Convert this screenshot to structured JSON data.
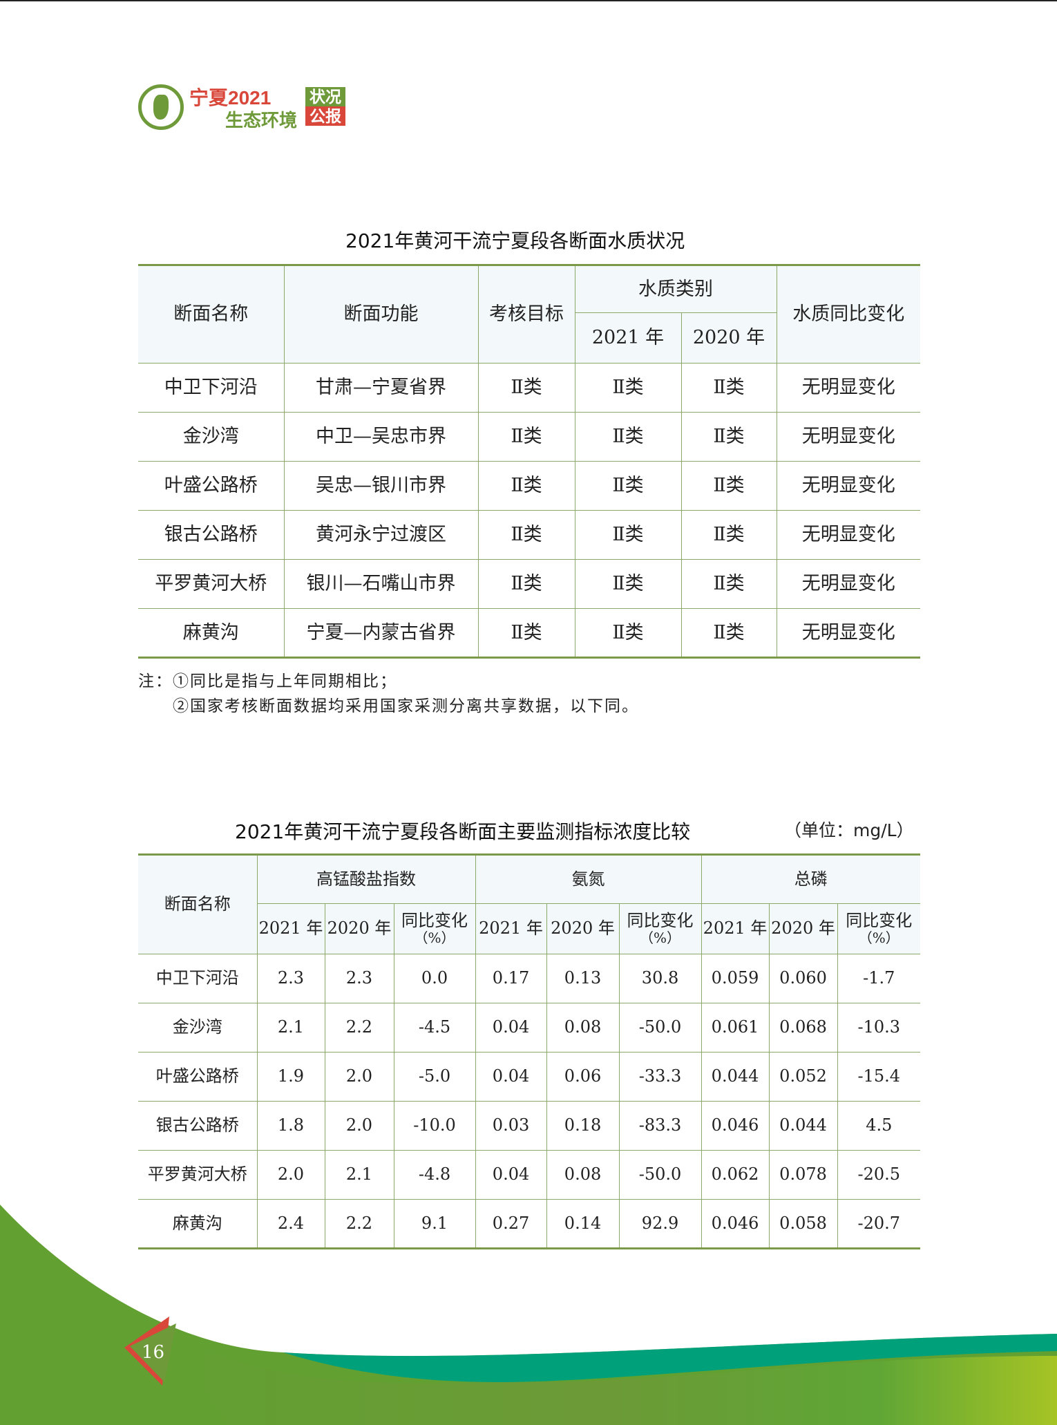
{
  "header": {
    "logo_line1": "宁夏2021",
    "logo_line2": "生态环境",
    "badge1": "状况",
    "badge2": "公报"
  },
  "table1": {
    "title": "2021年黄河干流宁夏段各断面水质状况",
    "headers": {
      "name": "断面名称",
      "function": "断面功能",
      "target": "考核目标",
      "class_group": "水质类别",
      "y2021": "2021 年",
      "y2020": "2020 年",
      "change": "水质同比变化"
    },
    "rows": [
      [
        "中卫下河沿",
        "甘肃—宁夏省界",
        "Ⅱ类",
        "Ⅱ类",
        "Ⅱ类",
        "无明显变化"
      ],
      [
        "金沙湾",
        "中卫—吴忠市界",
        "Ⅱ类",
        "Ⅱ类",
        "Ⅱ类",
        "无明显变化"
      ],
      [
        "叶盛公路桥",
        "吴忠—银川市界",
        "Ⅱ类",
        "Ⅱ类",
        "Ⅱ类",
        "无明显变化"
      ],
      [
        "银古公路桥",
        "黄河永宁过渡区",
        "Ⅱ类",
        "Ⅱ类",
        "Ⅱ类",
        "无明显变化"
      ],
      [
        "平罗黄河大桥",
        "银川—石嘴山市界",
        "Ⅱ类",
        "Ⅱ类",
        "Ⅱ类",
        "无明显变化"
      ],
      [
        "麻黄沟",
        "宁夏—内蒙古省界",
        "Ⅱ类",
        "Ⅱ类",
        "Ⅱ类",
        "无明显变化"
      ]
    ],
    "notes": [
      "注：①同比是指与上年同期相比；",
      "②国家考核断面数据均采用国家采测分离共享数据，以下同。"
    ]
  },
  "table2": {
    "title": "2021年黄河干流宁夏段各断面主要监测指标浓度比较",
    "unit": "（单位：mg/L）",
    "headers": {
      "name": "断面名称",
      "groups": [
        "高锰酸盐指数",
        "氨氮",
        "总磷"
      ],
      "y2021": "2021 年",
      "y2020": "2020 年",
      "change": "同比变化",
      "pct": "（%）"
    },
    "rows": [
      [
        "中卫下河沿",
        "2.3",
        "2.3",
        "0.0",
        "0.17",
        "0.13",
        "30.8",
        "0.059",
        "0.060",
        "-1.7"
      ],
      [
        "金沙湾",
        "2.1",
        "2.2",
        "-4.5",
        "0.04",
        "0.08",
        "-50.0",
        "0.061",
        "0.068",
        "-10.3"
      ],
      [
        "叶盛公路桥",
        "1.9",
        "2.0",
        "-5.0",
        "0.04",
        "0.06",
        "-33.3",
        "0.044",
        "0.052",
        "-15.4"
      ],
      [
        "银古公路桥",
        "1.8",
        "2.0",
        "-10.0",
        "0.03",
        "0.18",
        "-83.3",
        "0.046",
        "0.044",
        "4.5"
      ],
      [
        "平罗黄河大桥",
        "2.0",
        "2.1",
        "-4.8",
        "0.04",
        "0.08",
        "-50.0",
        "0.062",
        "0.078",
        "-20.5"
      ],
      [
        "麻黄沟",
        "2.4",
        "2.2",
        "9.1",
        "0.27",
        "0.14",
        "92.9",
        "0.046",
        "0.058",
        "-20.7"
      ]
    ]
  },
  "footer": {
    "page_number": "16"
  }
}
